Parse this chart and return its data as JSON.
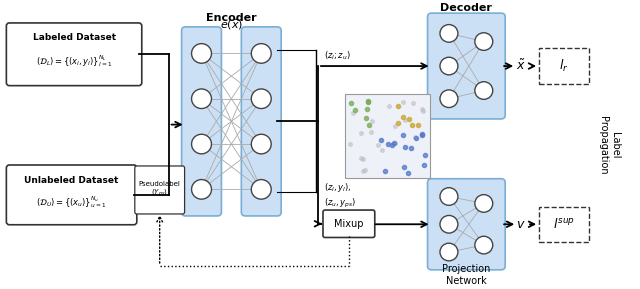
{
  "bg_color": "#ffffff",
  "encoder_label": "Encoder",
  "encoder_sublabel": "$e(\\bar{x})$",
  "decoder_label": "Decoder",
  "projection_label": "Projection\nNetwork",
  "mixup_label": "Mixup",
  "labeled_box_title": "Labeled Dataset",
  "labeled_box_eq": "$(\\mathcal{D}_L) = \\{(x_l, y_l)\\}_{l=1}^{N_L}$",
  "unlabeled_box_title": "Unlabeled Dataset",
  "unlabeled_box_eq": "$(\\mathcal{D}_U) = \\{(x_u)\\}_{u=1}^{N_u}$",
  "pseudo_label": "Pseudolabel\n$(Y_{ps})$",
  "arrow_label1": "$(z_l; z_u)$",
  "arrow_label2": "$(z_l, y_l),$",
  "arrow_label3": "$(z_u, y_{ps})$",
  "right_label1": "$\\tilde{x}$",
  "right_label2": "$v$",
  "loss_label1": "$l_r$",
  "loss_label2": "$l^{sup}$",
  "label_prop_text": "Label\nPropagation",
  "box_fill": "#cce0f5",
  "box_edge": "#7aaed6",
  "scatter_blue": "#5577cc",
  "scatter_gray": "#bbbbbb",
  "scatter_green": "#77aa55",
  "scatter_orange": "#ccaa44"
}
